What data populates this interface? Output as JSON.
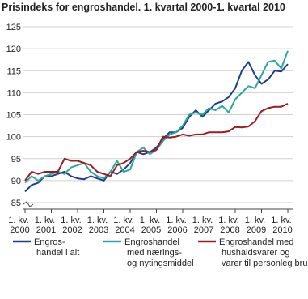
{
  "chart_data": {
    "type": "line",
    "title": "Prisindeks for engroshandel. 1. kvartal 2000-1. kvartal 2010",
    "categories": [
      "1. kv.\n2000",
      null,
      null,
      null,
      "1. kv.\n2001",
      null,
      null,
      null,
      "1. kv.\n2002",
      null,
      null,
      null,
      "1. kv.\n2003",
      null,
      null,
      null,
      "1. kv.\n2004",
      null,
      null,
      null,
      "1. kv.\n2005",
      null,
      null,
      null,
      "1. kv.\n2006",
      null,
      null,
      null,
      "1. kv.\n2007",
      null,
      null,
      null,
      "1. kv.\n2008",
      null,
      null,
      null,
      "1. kv.\n2009",
      null,
      null,
      null,
      "1. kv.\n2010"
    ],
    "series": [
      {
        "name": "Engros-\nhandel i alt",
        "color": "#1f3d8f",
        "values": [
          87.5,
          89,
          89.5,
          91,
          91,
          91.5,
          92,
          91,
          90.5,
          90.3,
          91,
          90.5,
          90,
          92,
          91.5,
          92.5,
          94,
          96.5,
          96,
          96.5,
          97.5,
          99.5,
          101,
          101,
          102,
          104.5,
          106,
          104.5,
          106,
          107.5,
          108,
          109,
          111,
          115,
          117,
          114,
          112,
          113,
          115,
          114.8,
          116.5
        ]
      },
      {
        "name": "Engroshandel\nmed nærings-\nog nytingsmiddel",
        "color": "#2aa89a",
        "values": [
          89.5,
          91,
          90,
          91,
          91.5,
          92,
          91.5,
          93,
          93.5,
          94,
          92,
          91,
          90.5,
          92,
          94.5,
          92,
          92.5,
          96.5,
          97.5,
          96,
          97,
          99,
          100.5,
          101,
          102.5,
          105,
          105.5,
          105,
          106.5,
          106,
          107,
          105.5,
          108.5,
          110,
          111.5,
          111,
          114,
          117,
          117.3,
          115.5,
          119.5
        ]
      },
      {
        "name": "Engroshandel med\nhushaldsvarer og\nvarer til personleg bruk",
        "color": "#9c1c24",
        "values": [
          90,
          92,
          91.5,
          92,
          92,
          92,
          95,
          94.5,
          94.5,
          94,
          93.5,
          92,
          91.5,
          91,
          93.5,
          94,
          95,
          96.5,
          96.8,
          96.5,
          97,
          100,
          99.8,
          100,
          100.5,
          100.2,
          100.5,
          100.5,
          101,
          101,
          101,
          101.2,
          102.2,
          102.1,
          102.3,
          103.5,
          105.8,
          106.5,
          106.8,
          106.8,
          107.5
        ]
      }
    ],
    "ylim": [
      85,
      125
    ],
    "yticks": [
      85,
      90,
      95,
      100,
      105,
      110,
      115,
      120,
      125
    ],
    "grid": true
  }
}
